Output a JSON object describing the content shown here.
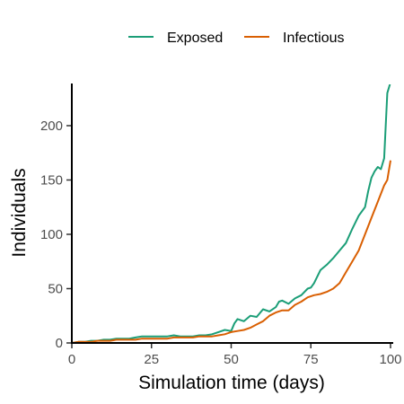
{
  "chart_data": {
    "type": "line",
    "title": "",
    "xlabel": "Simulation time (days)",
    "ylabel": "Individuals",
    "xlim": [
      0,
      100
    ],
    "ylim": [
      0,
      238
    ],
    "x_ticks": [
      0,
      25,
      50,
      75,
      100
    ],
    "y_ticks": [
      0,
      50,
      100,
      150,
      200
    ],
    "grid": false,
    "legend_position": "top",
    "series": [
      {
        "name": "Exposed",
        "color": "#1b9e77",
        "x": [
          0,
          2,
          4,
          6,
          8,
          10,
          12,
          14,
          16,
          18,
          20,
          22,
          24,
          26,
          28,
          30,
          32,
          34,
          36,
          38,
          40,
          42,
          44,
          46,
          48,
          50,
          51,
          52,
          54,
          56,
          58,
          60,
          62,
          64,
          65,
          66,
          68,
          70,
          72,
          74,
          75,
          76,
          78,
          80,
          82,
          84,
          86,
          88,
          90,
          92,
          93,
          94,
          95,
          96,
          97,
          98,
          99,
          100
        ],
        "values": [
          0,
          1,
          1,
          2,
          2,
          3,
          3,
          4,
          4,
          4,
          5,
          6,
          6,
          6,
          6,
          6,
          7,
          6,
          6,
          6,
          7,
          7,
          8,
          10,
          12,
          11,
          18,
          22,
          20,
          25,
          24,
          31,
          29,
          33,
          38,
          39,
          36,
          41,
          44,
          50,
          51,
          55,
          67,
          72,
          78,
          85,
          92,
          105,
          117,
          125,
          140,
          152,
          158,
          162,
          160,
          170,
          230,
          240
        ]
      },
      {
        "name": "Infectious",
        "color": "#d95f02",
        "x": [
          0,
          2,
          4,
          6,
          8,
          10,
          12,
          14,
          16,
          18,
          20,
          22,
          24,
          26,
          28,
          30,
          32,
          34,
          36,
          38,
          40,
          42,
          44,
          46,
          48,
          50,
          52,
          54,
          56,
          58,
          60,
          62,
          64,
          66,
          68,
          70,
          72,
          74,
          76,
          78,
          80,
          82,
          84,
          86,
          88,
          90,
          92,
          94,
          96,
          98,
          99,
          100
        ],
        "values": [
          0,
          1,
          1,
          1,
          2,
          2,
          2,
          3,
          3,
          3,
          3,
          4,
          4,
          4,
          4,
          4,
          5,
          5,
          5,
          5,
          6,
          6,
          6,
          7,
          8,
          10,
          11,
          12,
          14,
          17,
          20,
          25,
          28,
          30,
          30,
          35,
          38,
          42,
          44,
          45,
          47,
          50,
          55,
          65,
          75,
          85,
          100,
          115,
          130,
          145,
          150,
          168
        ]
      }
    ]
  }
}
